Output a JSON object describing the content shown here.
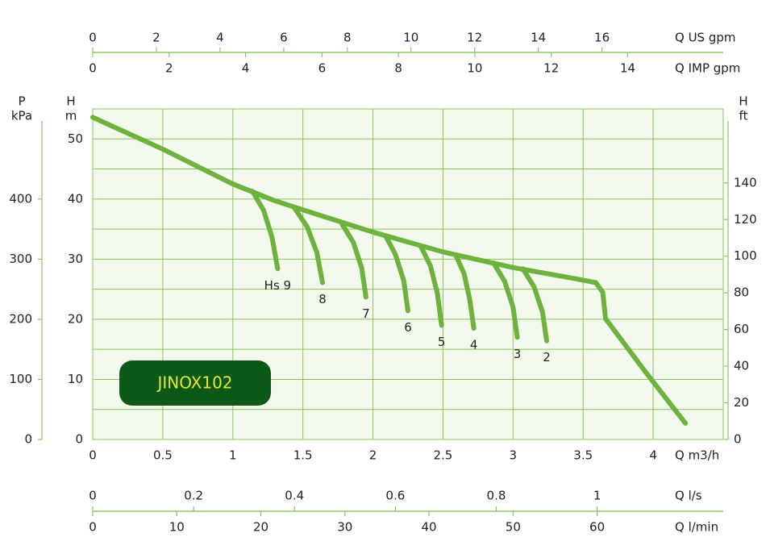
{
  "chart_data": {
    "type": "line",
    "box_label": "JINOX102",
    "x_label": "Q m3/h",
    "xlim": [
      0,
      4.5
    ],
    "xticks": [
      0,
      0.5,
      1,
      1.5,
      2,
      2.5,
      3,
      3.5,
      4
    ],
    "y_label": "H",
    "y_unit": "m",
    "ylim": [
      0,
      55
    ],
    "yticks": [
      0,
      10,
      20,
      30,
      40,
      50
    ],
    "ygrid": [
      0,
      5,
      10,
      15,
      20,
      25,
      30,
      35,
      40,
      45,
      50
    ],
    "grid": true,
    "extra_axes": [
      {
        "side": "top",
        "label": "Q US gpm",
        "lim": [
          0,
          19.81
        ],
        "ticks": [
          0,
          2,
          4,
          6,
          8,
          10,
          12,
          14,
          16
        ]
      },
      {
        "side": "top-inner",
        "label": "Q IMP gpm",
        "lim": [
          0,
          16.5
        ],
        "ticks": [
          0,
          2,
          4,
          6,
          8,
          10,
          12,
          14
        ]
      },
      {
        "side": "bottom",
        "label": "Q l/s",
        "lim": [
          0,
          1.25
        ],
        "ticks": [
          0,
          0.2,
          0.4,
          0.6,
          0.8,
          1
        ]
      },
      {
        "side": "bottom-outer",
        "label": "Q l/min",
        "lim": [
          0,
          75
        ],
        "ticks": [
          0,
          10,
          20,
          30,
          40,
          50,
          60
        ]
      },
      {
        "side": "left",
        "label": "P",
        "unit": "kPa",
        "lim": [
          0,
          550
        ],
        "ticks": [
          0,
          100,
          200,
          300,
          400
        ]
      },
      {
        "side": "right",
        "label": "H",
        "unit": "ft",
        "lim": [
          0,
          180.4
        ],
        "ticks": [
          0,
          20,
          40,
          60,
          80,
          100,
          120,
          140
        ]
      }
    ],
    "curve": {
      "color": "#6cb23c",
      "x": [
        0,
        0.5,
        1,
        1.29,
        1.5,
        2,
        2.5,
        3,
        3.36,
        3.59,
        3.64,
        3.66,
        3.94,
        4.23
      ],
      "y": [
        53.6,
        48.3,
        42.5,
        39.8,
        38.2,
        34.5,
        31.2,
        28.6,
        27.1,
        26.1,
        24.5,
        20.1,
        11.4,
        2.7
      ]
    },
    "stages": [
      {
        "name": "Hs 9",
        "x": [
          1.14,
          1.22,
          1.28,
          1.32
        ],
        "y": [
          41.3,
          38.1,
          33.6,
          28.4
        ]
      },
      {
        "name": "8",
        "x": [
          1.44,
          1.53,
          1.6,
          1.64
        ],
        "y": [
          38.5,
          35.4,
          31.1,
          26.1
        ]
      },
      {
        "name": "7",
        "x": [
          1.78,
          1.86,
          1.92,
          1.95
        ],
        "y": [
          35.8,
          32.8,
          28.5,
          23.7
        ]
      },
      {
        "name": "6",
        "x": [
          2.09,
          2.16,
          2.22,
          2.25
        ],
        "y": [
          33.9,
          30.8,
          26.4,
          21.4
        ]
      },
      {
        "name": "5",
        "x": [
          2.34,
          2.41,
          2.46,
          2.49
        ],
        "y": [
          32.2,
          28.9,
          24.3,
          19.0
        ]
      },
      {
        "name": "4",
        "x": [
          2.59,
          2.65,
          2.69,
          2.72
        ],
        "y": [
          30.7,
          27.6,
          23.4,
          18.5
        ]
      },
      {
        "name": "3",
        "x": [
          2.86,
          2.94,
          3.0,
          3.03
        ],
        "y": [
          29.4,
          26.3,
          22.0,
          17.0
        ]
      },
      {
        "name": "2",
        "x": [
          3.07,
          3.15,
          3.21,
          3.24
        ],
        "y": [
          28.4,
          25.4,
          21.2,
          16.4
        ]
      }
    ]
  }
}
